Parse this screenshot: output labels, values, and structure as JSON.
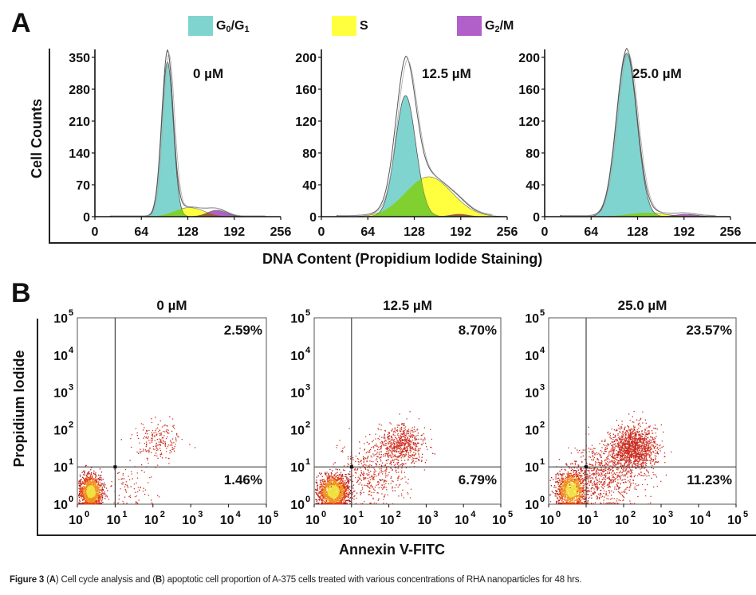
{
  "figure": {
    "caption": {
      "figure_label": "Figure 3",
      "part_a_letter": "A",
      "part_a_text": " Cell cycle analysis and ",
      "part_b_letter": "B",
      "part_b_text": " apoptotic cell proportion of A-375 cells treated with various concentrations of RHA nanoparticles for 48 hrs."
    }
  },
  "colors": {
    "g0g1": "#80d4d0",
    "s": "#ffff40",
    "g2m": "#b060c8",
    "overlap_green": "#80d030",
    "overlap_brown": "#a06030",
    "axis": "#111111",
    "trace": "#555555"
  },
  "chart_data": [
    {
      "type": "area",
      "panel": "A",
      "panel_letter": "A",
      "title": "",
      "xlabel": "DNA Content (Propidium Iodide Staining)",
      "ylabel": "Cell Counts",
      "legend": {
        "placement": "top",
        "entries": [
          {
            "key": "g0g1",
            "label_main": "G",
            "sub1": "0",
            "mid": "/G",
            "sub2": "1"
          },
          {
            "key": "s",
            "label_main": "S",
            "sub1": "",
            "mid": "",
            "sub2": ""
          },
          {
            "key": "g2m",
            "label_main": "G",
            "sub1": "2",
            "mid": "/M",
            "sub2": ""
          }
        ]
      },
      "subplots": [
        {
          "label": "0 µM",
          "xlim": [
            0,
            256
          ],
          "ylim": [
            0,
            350
          ],
          "xticks": [
            0,
            64,
            128,
            192,
            256
          ],
          "yticks": [
            0,
            70,
            140,
            210,
            280,
            350
          ],
          "series": [
            {
              "name": "G0/G1",
              "center": 100,
              "sigma": 8,
              "peak": 340
            },
            {
              "name": "S",
              "center": 130,
              "sigma": 20,
              "peak": 20
            },
            {
              "name": "G2/M",
              "center": 168,
              "sigma": 13,
              "peak": 14
            }
          ],
          "total_peak": 365
        },
        {
          "label": "12.5 µM",
          "xlim": [
            0,
            256
          ],
          "ylim": [
            0,
            200
          ],
          "xticks": [
            0,
            64,
            128,
            192,
            256
          ],
          "yticks": [
            0,
            40,
            80,
            120,
            160,
            200
          ],
          "series": [
            {
              "name": "G0/G1",
              "center": 116,
              "sigma": 14,
              "peak": 152
            },
            {
              "name": "S",
              "center": 148,
              "sigma": 32,
              "peak": 50
            },
            {
              "name": "G2/M",
              "center": 190,
              "sigma": 12,
              "peak": 3
            }
          ],
          "total_peak": 200
        },
        {
          "label": "25.0 µM",
          "xlim": [
            0,
            256
          ],
          "ylim": [
            0,
            200
          ],
          "xticks": [
            0,
            64,
            128,
            192,
            256
          ],
          "yticks": [
            0,
            40,
            80,
            120,
            160,
            200
          ],
          "series": [
            {
              "name": "G0/G1",
              "center": 113,
              "sigma": 14,
              "peak": 205
            },
            {
              "name": "S",
              "center": 140,
              "sigma": 25,
              "peak": 5
            },
            {
              "name": "G2/M",
              "center": 195,
              "sigma": 15,
              "peak": 3
            }
          ],
          "total_peak": 210
        }
      ]
    },
    {
      "type": "scatter",
      "panel": "B",
      "panel_letter": "B",
      "title": "",
      "xlabel": "Annexin V-FITC",
      "ylabel": "Propidium Iodide",
      "xscale": "log",
      "yscale": "log",
      "subplots": [
        {
          "label": "0 µM",
          "xlim": [
            1,
            100000
          ],
          "ylim": [
            1,
            100000
          ],
          "xticks": [
            "0",
            "1",
            "2",
            "3",
            "4",
            "5"
          ],
          "yticks": [
            "0",
            "1",
            "2",
            "3",
            "4",
            "5"
          ],
          "gate": {
            "x": 10,
            "y": 10
          },
          "quadrants": {
            "upper_right": "2.59%",
            "lower_right": "1.46%"
          },
          "clusters": [
            {
              "log_x": 0.35,
              "log_y": 0.35,
              "sx": 0.15,
              "sy": 0.22,
              "n": 1300,
              "dense": true
            },
            {
              "log_x": 2.1,
              "log_y": 1.7,
              "sx": 0.3,
              "sy": 0.25,
              "n": 200,
              "dense": false
            },
            {
              "log_x": 1.4,
              "log_y": 0.5,
              "sx": 0.35,
              "sy": 0.3,
              "n": 90,
              "dense": false
            }
          ]
        },
        {
          "label": "12.5 µM",
          "xlim": [
            1,
            100000
          ],
          "ylim": [
            1,
            100000
          ],
          "xticks": [
            "0",
            "1",
            "2",
            "3",
            "4",
            "5"
          ],
          "yticks": [
            "0",
            "1",
            "2",
            "3",
            "4",
            "5"
          ],
          "gate": {
            "x": 10,
            "y": 10
          },
          "quadrants": {
            "upper_right": "8.70%",
            "lower_right": "6.79%"
          },
          "clusters": [
            {
              "log_x": 0.5,
              "log_y": 0.35,
              "sx": 0.2,
              "sy": 0.22,
              "n": 1500,
              "dense": true
            },
            {
              "log_x": 2.3,
              "log_y": 1.6,
              "sx": 0.3,
              "sy": 0.28,
              "n": 650,
              "dense": false
            },
            {
              "log_x": 1.5,
              "log_y": 0.8,
              "sx": 0.45,
              "sy": 0.4,
              "n": 420,
              "dense": false
            }
          ]
        },
        {
          "label": "25.0 µM",
          "xlim": [
            1,
            100000
          ],
          "ylim": [
            1,
            100000
          ],
          "xticks": [
            "0",
            "1",
            "2",
            "3",
            "4",
            "5"
          ],
          "yticks": [
            "0",
            "1",
            "2",
            "3",
            "4",
            "5"
          ],
          "gate": {
            "x": 10,
            "y": 10
          },
          "quadrants": {
            "upper_right": "23.57%",
            "lower_right": "11.23%"
          },
          "clusters": [
            {
              "log_x": 0.6,
              "log_y": 0.4,
              "sx": 0.2,
              "sy": 0.25,
              "n": 1200,
              "dense": true
            },
            {
              "log_x": 2.25,
              "log_y": 1.5,
              "sx": 0.3,
              "sy": 0.3,
              "n": 1300,
              "dense": false
            },
            {
              "log_x": 1.5,
              "log_y": 0.8,
              "sx": 0.45,
              "sy": 0.45,
              "n": 700,
              "dense": false
            }
          ]
        }
      ]
    }
  ]
}
